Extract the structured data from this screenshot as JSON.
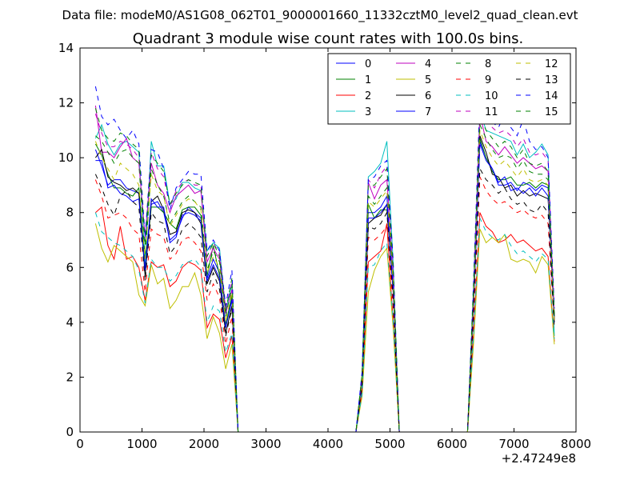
{
  "supertitle": "Data file: modeM0/AS1G08_062T01_9000001660_11332cztM0_level2_quad_clean.evt",
  "chart_data": {
    "type": "line",
    "title": "Quadrant 3 module wise count rates with 100.0s bins.",
    "xlabel": "",
    "ylabel": "",
    "xlim": [
      0,
      8000
    ],
    "ylim": [
      0,
      14
    ],
    "x_ticks": [
      0,
      1000,
      2000,
      3000,
      4000,
      5000,
      6000,
      7000,
      8000
    ],
    "y_ticks": [
      0,
      2,
      4,
      6,
      8,
      10,
      12,
      14
    ],
    "x_offset_label": "+2.47249e8",
    "grid": false,
    "legend_position": "top-right",
    "legend_columns": 4,
    "x": [
      250,
      350,
      450,
      550,
      650,
      750,
      850,
      950,
      1050,
      1150,
      1250,
      1350,
      1450,
      1550,
      1650,
      1750,
      1850,
      1950,
      2050,
      2150,
      2250,
      2350,
      2450,
      2550,
      2650,
      4450,
      4550,
      4650,
      4750,
      4850,
      4950,
      5050,
      5150,
      5250,
      6250,
      6350,
      6450,
      6550,
      6650,
      6750,
      6850,
      6950,
      7050,
      7150,
      7250,
      7350,
      7450,
      7550,
      7650
    ],
    "series": [
      {
        "name": "0",
        "color": "#0000ff",
        "dashed": false,
        "values": [
          10.3,
          9.7,
          9.0,
          9.2,
          9.2,
          8.9,
          8.8,
          8.7,
          6.1,
          8.3,
          8.4,
          8.0,
          7.0,
          7.2,
          7.8,
          8.2,
          8.0,
          7.8,
          5.6,
          6.3,
          5.8,
          3.9,
          4.9,
          0,
          0,
          0,
          1.8,
          8.0,
          8.0,
          8.2,
          8.6,
          5.3,
          0,
          0,
          0,
          4.9,
          10.6,
          10.0,
          9.6,
          9.0,
          9.0,
          9.1,
          8.8,
          9.1,
          9.0,
          8.8,
          9.0,
          8.9,
          4.2
        ]
      },
      {
        "name": "1",
        "color": "#008000",
        "dashed": false,
        "values": [
          10.5,
          10.1,
          9.4,
          8.9,
          8.9,
          8.7,
          8.6,
          8.9,
          6.0,
          8.2,
          8.2,
          8.0,
          7.6,
          7.4,
          8.1,
          8.2,
          8.2,
          7.9,
          5.7,
          6.8,
          5.7,
          3.9,
          5.0,
          0,
          0,
          0,
          1.8,
          8.3,
          7.8,
          8.1,
          8.1,
          5.2,
          0,
          0,
          0,
          4.7,
          10.7,
          10.0,
          9.5,
          9.2,
          9.2,
          9.3,
          9.0,
          9.0,
          9.1,
          8.9,
          9.1,
          9.0,
          4.0
        ]
      },
      {
        "name": "2",
        "color": "#ff0000",
        "dashed": false,
        "values": [
          8.0,
          8.2,
          6.8,
          6.3,
          7.5,
          6.3,
          6.4,
          6.0,
          4.8,
          6.2,
          6.0,
          6.1,
          5.3,
          5.5,
          6.0,
          6.2,
          6.1,
          5.9,
          3.8,
          4.3,
          4.1,
          2.7,
          3.5,
          0,
          0,
          0,
          1.4,
          6.2,
          6.4,
          6.6,
          7.6,
          4.0,
          0,
          0,
          0,
          3.6,
          8.0,
          7.5,
          7.3,
          6.9,
          7.0,
          7.2,
          6.9,
          7.0,
          6.8,
          6.6,
          6.7,
          6.4,
          3.3
        ]
      },
      {
        "name": "3",
        "color": "#00bfbf",
        "dashed": false,
        "values": [
          10.7,
          11.2,
          10.5,
          10.1,
          10.5,
          10.6,
          10.4,
          10.2,
          6.2,
          10.6,
          9.7,
          9.7,
          8.3,
          8.5,
          9.1,
          9.1,
          8.9,
          8.8,
          6.6,
          6.9,
          6.7,
          4.4,
          5.4,
          0,
          0,
          0,
          2.1,
          9.3,
          9.5,
          9.8,
          10.6,
          6.2,
          0,
          0,
          0,
          5.5,
          11.7,
          11.0,
          10.9,
          10.8,
          10.7,
          10.6,
          10.1,
          10.5,
          10.0,
          10.2,
          10.5,
          10.1,
          3.5
        ]
      },
      {
        "name": "4",
        "color": "#bf00bf",
        "dashed": false,
        "values": [
          11.9,
          10.2,
          10.2,
          10.0,
          10.4,
          10.7,
          10.0,
          9.8,
          7.1,
          9.8,
          9.0,
          8.7,
          8.0,
          8.6,
          8.8,
          9.0,
          8.7,
          8.8,
          6.2,
          6.7,
          6.3,
          4.3,
          5.2,
          0,
          0,
          0,
          2.0,
          9.1,
          8.5,
          9.0,
          9.2,
          5.8,
          0,
          0,
          0,
          5.2,
          11.6,
          10.6,
          10.4,
          10.1,
          10.4,
          10.1,
          9.8,
          10.0,
          9.8,
          9.6,
          9.7,
          9.5,
          4.2
        ]
      },
      {
        "name": "5",
        "color": "#bfbf00",
        "dashed": false,
        "values": [
          7.6,
          6.7,
          6.2,
          6.8,
          6.6,
          6.4,
          6.2,
          5.0,
          4.6,
          6.1,
          5.4,
          5.6,
          4.5,
          4.8,
          5.3,
          5.3,
          5.8,
          5.0,
          3.4,
          4.2,
          3.6,
          2.3,
          3.2,
          0,
          0,
          0,
          1.3,
          5.1,
          5.9,
          6.4,
          6.7,
          3.8,
          0,
          0,
          0,
          3.3,
          7.4,
          6.9,
          7.1,
          6.9,
          7.2,
          6.3,
          6.2,
          6.3,
          6.2,
          5.8,
          6.4,
          6.1,
          3.2
        ]
      },
      {
        "name": "6",
        "color": "#000000",
        "dashed": false,
        "values": [
          10.0,
          10.3,
          9.3,
          9.1,
          9.0,
          8.8,
          8.9,
          8.7,
          5.7,
          8.4,
          8.6,
          8.1,
          7.2,
          7.3,
          8.0,
          8.1,
          8.0,
          7.6,
          5.4,
          6.0,
          5.5,
          3.6,
          4.6,
          0,
          0,
          0,
          1.7,
          7.6,
          7.8,
          7.9,
          8.3,
          5.1,
          0,
          0,
          0,
          4.6,
          10.8,
          10.2,
          9.4,
          9.3,
          8.9,
          9.0,
          8.6,
          8.8,
          8.6,
          8.7,
          8.6,
          8.5,
          4.1
        ]
      },
      {
        "name": "7",
        "color": "#0000ff",
        "dashed": false,
        "values": [
          9.9,
          9.9,
          8.9,
          9.0,
          8.7,
          8.6,
          8.4,
          8.5,
          5.9,
          8.5,
          8.2,
          8.2,
          6.9,
          7.1,
          7.9,
          8.0,
          7.9,
          7.7,
          5.5,
          6.1,
          5.6,
          3.8,
          4.8,
          0,
          0,
          0,
          1.7,
          7.8,
          7.8,
          8.0,
          8.3,
          5.2,
          0,
          0,
          0,
          4.7,
          10.5,
          9.9,
          9.6,
          9.1,
          9.3,
          8.8,
          8.9,
          8.7,
          8.9,
          8.6,
          8.9,
          8.6,
          4.0
        ]
      },
      {
        "name": "8",
        "color": "#008000",
        "dashed": true,
        "values": [
          10.8,
          10.6,
          10.2,
          9.8,
          10.2,
          10.3,
          10.0,
          9.8,
          6.3,
          9.6,
          9.0,
          8.6,
          7.6,
          8.0,
          8.4,
          8.6,
          8.4,
          8.2,
          5.9,
          6.6,
          6.2,
          4.2,
          5.3,
          0,
          0,
          0,
          2.0,
          8.6,
          8.3,
          8.6,
          8.9,
          5.8,
          0,
          0,
          0,
          5.2,
          11.2,
          10.7,
          10.3,
          10.0,
          10.1,
          10.0,
          9.6,
          9.9,
          9.5,
          9.4,
          9.4,
          9.2,
          4.2
        ]
      },
      {
        "name": "9",
        "color": "#ff0000",
        "dashed": true,
        "values": [
          9.2,
          8.6,
          7.8,
          7.9,
          8.0,
          7.8,
          7.4,
          7.2,
          5.1,
          7.4,
          7.2,
          7.1,
          6.3,
          6.5,
          7.0,
          7.1,
          6.9,
          6.6,
          4.8,
          5.4,
          4.9,
          3.2,
          4.2,
          0,
          0,
          0,
          1.6,
          7.1,
          7.0,
          7.2,
          7.5,
          4.6,
          0,
          0,
          0,
          4.1,
          9.3,
          8.8,
          8.5,
          8.3,
          8.4,
          8.2,
          8.0,
          8.1,
          7.9,
          7.8,
          7.9,
          7.6,
          3.8
        ]
      },
      {
        "name": "10",
        "color": "#00bfbf",
        "dashed": true,
        "values": [
          8.0,
          7.3,
          7.1,
          6.9,
          6.8,
          6.6,
          6.4,
          5.9,
          4.7,
          6.3,
          6.0,
          6.0,
          5.5,
          5.7,
          6.1,
          6.2,
          6.3,
          6.0,
          4.0,
          4.6,
          4.4,
          2.9,
          3.6,
          0,
          0,
          0,
          1.4,
          6.0,
          6.1,
          6.6,
          6.9,
          4.1,
          0,
          0,
          0,
          3.6,
          7.8,
          7.3,
          7.1,
          7.0,
          7.2,
          6.8,
          6.5,
          6.6,
          6.4,
          6.2,
          6.5,
          6.3,
          3.4
        ]
      },
      {
        "name": "11",
        "color": "#bf00bf",
        "dashed": true,
        "values": [
          11.6,
          10.9,
          10.4,
          10.4,
          10.6,
          10.5,
          10.3,
          10.0,
          7.0,
          10.2,
          9.6,
          9.3,
          8.2,
          8.8,
          9.1,
          9.2,
          9.0,
          9.0,
          6.4,
          6.9,
          6.5,
          4.5,
          5.5,
          0,
          0,
          0,
          2.1,
          9.2,
          8.9,
          9.4,
          9.7,
          6.0,
          0,
          0,
          0,
          5.4,
          12.2,
          11.4,
          11.1,
          10.9,
          11.0,
          10.8,
          10.4,
          10.7,
          10.2,
          10.1,
          10.2,
          9.9,
          4.3
        ]
      },
      {
        "name": "12",
        "color": "#bfbf00",
        "dashed": true,
        "values": [
          10.6,
          10.0,
          9.6,
          9.2,
          9.8,
          9.6,
          9.4,
          9.0,
          6.3,
          9.4,
          8.8,
          8.6,
          7.5,
          7.9,
          8.3,
          8.5,
          8.4,
          8.1,
          5.8,
          6.4,
          6.0,
          4.0,
          5.1,
          0,
          0,
          0,
          1.9,
          8.4,
          8.2,
          8.5,
          8.8,
          5.5,
          0,
          0,
          0,
          5.0,
          11.0,
          10.4,
          10.0,
          9.7,
          9.9,
          9.6,
          9.3,
          9.6,
          9.2,
          9.1,
          9.2,
          9.0,
          4.0
        ]
      },
      {
        "name": "13",
        "color": "#000000",
        "dashed": true,
        "values": [
          9.4,
          8.9,
          8.3,
          7.9,
          8.6,
          8.8,
          8.4,
          8.2,
          5.5,
          8.0,
          7.7,
          7.6,
          6.5,
          6.8,
          7.4,
          7.6,
          7.4,
          7.1,
          5.1,
          5.8,
          5.2,
          3.5,
          4.5,
          0,
          0,
          0,
          1.7,
          7.5,
          7.4,
          7.6,
          8.0,
          4.9,
          0,
          0,
          0,
          4.5,
          9.6,
          9.2,
          9.0,
          8.7,
          8.9,
          8.5,
          8.3,
          8.4,
          8.1,
          8.0,
          8.3,
          8.0,
          3.8
        ]
      },
      {
        "name": "14",
        "color": "#0000ff",
        "dashed": true,
        "values": [
          12.6,
          11.5,
          11.2,
          11.4,
          11.0,
          10.7,
          11.0,
          10.5,
          7.1,
          10.3,
          10.2,
          9.6,
          8.1,
          8.9,
          9.2,
          9.5,
          9.4,
          9.4,
          6.6,
          7.0,
          6.6,
          4.6,
          5.9,
          0,
          0,
          0,
          2.2,
          9.2,
          9.3,
          9.7,
          9.9,
          6.3,
          0,
          0,
          0,
          5.6,
          12.1,
          11.5,
          11.3,
          11.1,
          11.6,
          11.1,
          10.8,
          11.4,
          10.6,
          10.3,
          10.4,
          10.0,
          4.5
        ]
      },
      {
        "name": "15",
        "color": "#008000",
        "dashed": true,
        "values": [
          11.8,
          11.0,
          10.7,
          10.6,
          10.9,
          10.8,
          10.5,
          10.3,
          6.8,
          10.1,
          9.8,
          9.5,
          8.3,
          8.7,
          9.0,
          9.2,
          9.1,
          9.0,
          6.4,
          6.9,
          6.4,
          4.4,
          5.6,
          0,
          0,
          0,
          2.1,
          9.0,
          9.0,
          9.3,
          9.6,
          6.0,
          0,
          0,
          0,
          5.4,
          11.5,
          11.0,
          10.7,
          10.4,
          10.6,
          10.4,
          10.0,
          10.3,
          9.8,
          9.7,
          9.8,
          9.5,
          4.3
        ]
      }
    ]
  }
}
